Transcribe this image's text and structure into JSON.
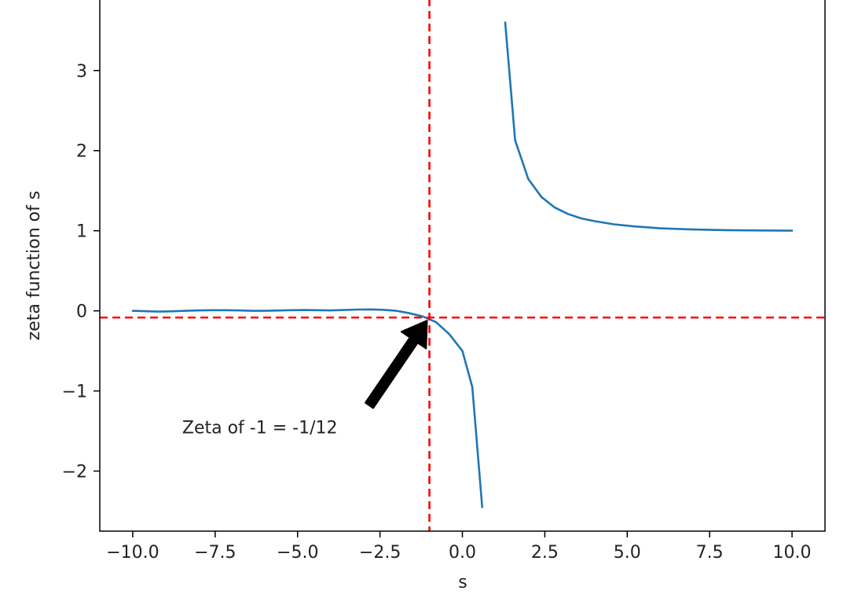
{
  "chart_data": {
    "type": "line",
    "title": "",
    "xlabel": "s",
    "ylabel": "zeta function of s",
    "xlim": [
      -11.0,
      11.0
    ],
    "ylim": [
      -2.75,
      3.9
    ],
    "xticks": [
      -10.0,
      -7.5,
      -5.0,
      -2.5,
      0.0,
      2.5,
      5.0,
      7.5,
      10.0
    ],
    "xtick_labels": [
      "−10.0",
      "−7.5",
      "−5.0",
      "−2.5",
      "0.0",
      "2.5",
      "5.0",
      "7.5",
      "10.0"
    ],
    "yticks": [
      -2,
      -1,
      0,
      1,
      2,
      3
    ],
    "ytick_labels": [
      "−2",
      "−1",
      "0",
      "1",
      "2",
      "3"
    ],
    "grid": false,
    "line_color": "#1f77b4",
    "series": [
      {
        "segments": [
          {
            "x": [
              -10.0,
              -9.6,
              -9.2,
              -8.8,
              -8.4,
              -8.0,
              -7.6,
              -7.2,
              -6.8,
              -6.4,
              -6.0,
              -5.6,
              -5.2,
              -4.8,
              -4.4,
              -4.0,
              -3.6,
              -3.2,
              -2.8,
              -2.4,
              -2.0,
              -1.6,
              -1.2,
              -0.8,
              -0.4,
              0.0,
              0.3,
              0.6
            ],
            "y": [
              0.0,
              -0.005,
              -0.01,
              -0.006,
              0.0,
              0.005,
              0.008,
              0.008,
              0.005,
              0.0,
              0.0,
              0.004,
              0.008,
              0.01,
              0.008,
              0.005,
              0.01,
              0.016,
              0.018,
              0.013,
              0.0,
              -0.03,
              -0.07,
              -0.14,
              -0.29,
              -0.5,
              -0.95,
              -2.45
            ]
          },
          {
            "x": [
              1.3,
              1.6,
              2.0,
              2.4,
              2.8,
              3.2,
              3.6,
              4.0,
              4.6,
              5.2,
              6.0,
              7.0,
              8.0,
              9.0,
              10.0
            ],
            "y": [
              3.6,
              2.13,
              1.645,
              1.42,
              1.29,
              1.21,
              1.155,
              1.12,
              1.08,
              1.055,
              1.03,
              1.015,
              1.008,
              1.004,
              1.001
            ]
          }
        ]
      }
    ],
    "reference_lines": {
      "vertical_x": -1.0,
      "horizontal_y": -0.0833,
      "color": "#ff0000",
      "style": "dashed"
    },
    "annotation": {
      "text": "Zeta of -1 = -1/12",
      "point": [
        -1.0,
        -0.0833
      ],
      "text_position": [
        -8.5,
        -1.45
      ]
    }
  }
}
